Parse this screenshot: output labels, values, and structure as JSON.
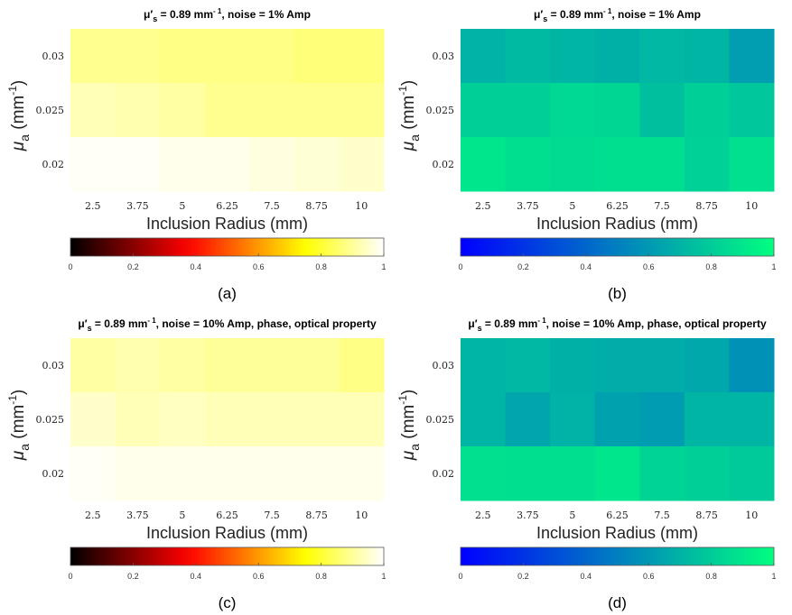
{
  "figure": {
    "description_labels": [
      "(a)",
      "(b)",
      "(c)",
      "(d)"
    ]
  },
  "chart_data": [
    {
      "type": "heatmap",
      "panel_label": "(a)",
      "title": {
        "main": "μ′",
        "sub": "s",
        "mid": " = 0.89 mm",
        "sup": "- 1",
        "tail": ", noise = 1% Amp"
      },
      "xlabel": "Inclusion Radius (mm)",
      "ylabel": {
        "main": "μ",
        "sub": "a",
        "tail": " (mm",
        "sup": "-1",
        "close": ")"
      },
      "x": [
        "2.5",
        "3.75",
        "5",
        "6.25",
        "7.5",
        "8.75",
        "10"
      ],
      "y": [
        "0.03",
        "0.025",
        "0.02"
      ],
      "colormap": "hot",
      "clim": [
        0,
        1
      ],
      "colorbar_ticks": [
        "0",
        "0.2",
        "0.4",
        "0.6",
        "0.8",
        "1"
      ],
      "z": [
        [
          0.89,
          0.89,
          0.88,
          0.88,
          0.88,
          0.87,
          0.87
        ],
        [
          0.93,
          0.92,
          0.91,
          0.89,
          0.89,
          0.89,
          0.89
        ],
        [
          0.99,
          0.99,
          0.98,
          0.98,
          0.97,
          0.96,
          0.95
        ]
      ]
    },
    {
      "type": "heatmap",
      "panel_label": "(b)",
      "title": {
        "main": "μ′",
        "sub": "s",
        "mid": " = 0.89 mm",
        "sup": "- 1",
        "tail": ", noise = 1% Amp"
      },
      "xlabel": "Inclusion Radius (mm)",
      "ylabel": {
        "main": "μ",
        "sub": "a",
        "tail": " (mm",
        "sup": "-1",
        "close": ")"
      },
      "x": [
        "2.5",
        "3.75",
        "5",
        "6.25",
        "7.5",
        "8.75",
        "10"
      ],
      "y": [
        "0.03",
        "0.025",
        "0.02"
      ],
      "colormap": "winter",
      "clim": [
        0,
        1
      ],
      "colorbar_ticks": [
        "0",
        "0.2",
        "0.4",
        "0.6",
        "0.8",
        "1"
      ],
      "z": [
        [
          0.7,
          0.73,
          0.71,
          0.69,
          0.72,
          0.71,
          0.62
        ],
        [
          0.81,
          0.81,
          0.85,
          0.84,
          0.75,
          0.81,
          0.78
        ],
        [
          0.9,
          0.87,
          0.86,
          0.87,
          0.87,
          0.82,
          0.88
        ]
      ]
    },
    {
      "type": "heatmap",
      "panel_label": "(c)",
      "title": {
        "main": "μ′",
        "sub": "s",
        "mid": " = 0.89 mm",
        "sup": "- 1",
        "tail": ", noise = 10% Amp, phase, optical property"
      },
      "xlabel": "Inclusion Radius (mm)",
      "ylabel": {
        "main": "μ",
        "sub": "a",
        "tail": " (mm",
        "sup": "-1",
        "close": ")"
      },
      "x": [
        "2.5",
        "3.75",
        "5",
        "6.25",
        "7.5",
        "8.75",
        "10"
      ],
      "y": [
        "0.03",
        "0.025",
        "0.02"
      ],
      "colormap": "hot",
      "clim": [
        0,
        1
      ],
      "colorbar_ticks": [
        "0",
        "0.2",
        "0.4",
        "0.6",
        "0.8",
        "1"
      ],
      "z": [
        [
          0.91,
          0.92,
          0.91,
          0.9,
          0.9,
          0.9,
          0.88
        ],
        [
          0.95,
          0.93,
          0.94,
          0.93,
          0.93,
          0.93,
          0.93
        ],
        [
          0.99,
          0.98,
          0.98,
          0.98,
          0.98,
          0.98,
          0.98
        ]
      ]
    },
    {
      "type": "heatmap",
      "panel_label": "(d)",
      "title": {
        "main": "μ′",
        "sub": "s",
        "mid": " = 0.89 mm",
        "sup": "- 1",
        "tail": ", noise = 10% Amp, phase, optical property"
      },
      "xlabel": "Inclusion Radius (mm)",
      "ylabel": {
        "main": "μ",
        "sub": "a",
        "tail": " (mm",
        "sup": "-1",
        "close": ")"
      },
      "x": [
        "2.5",
        "3.75",
        "5",
        "6.25",
        "7.5",
        "8.75",
        "10"
      ],
      "y": [
        "0.03",
        "0.025",
        "0.02"
      ],
      "colormap": "winter",
      "clim": [
        0,
        1
      ],
      "colorbar_ticks": [
        "0",
        "0.2",
        "0.4",
        "0.6",
        "0.8",
        "1"
      ],
      "z": [
        [
          0.71,
          0.72,
          0.69,
          0.68,
          0.68,
          0.66,
          0.57
        ],
        [
          0.71,
          0.65,
          0.7,
          0.63,
          0.61,
          0.71,
          0.71
        ],
        [
          0.88,
          0.87,
          0.87,
          0.9,
          0.83,
          0.81,
          0.79
        ]
      ]
    }
  ]
}
